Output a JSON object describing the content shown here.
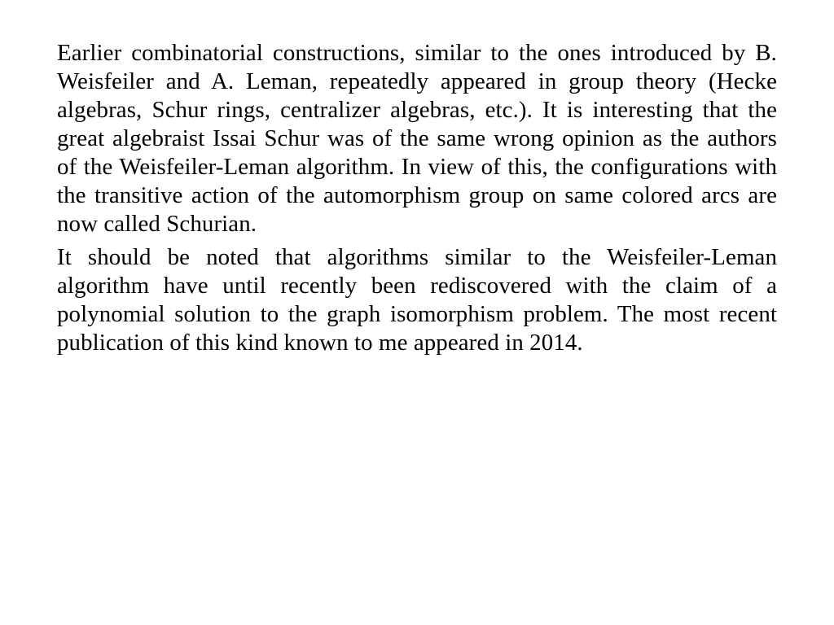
{
  "document": {
    "background_color": "#ffffff",
    "text_color": "#000000",
    "font_family": "Times New Roman",
    "font_size_pt": 22,
    "line_height": 1.21,
    "text_align": "justify",
    "paragraphs": [
      "Earlier combinatorial constructions, similar to the ones introduced by B. Weisfeiler and A. Leman, repeatedly appeared in group theory (Hecke algebras, Schur rings, centralizer algebras, etc.).  It is interesting that the great algebraist Issai Schur was of the same wrong opinion as the authors of the Weisfeiler-Leman algorithm. In view of this, the configurations with the transitive action of the automorphism group on same colored arcs are now called Schurian.",
      "It should be noted that algorithms similar to the Weisfeiler-Leman algorithm have until recently been rediscovered with the claim of a polynomial solution to the graph isomorphism problem. The most recent publication of this kind known to me appeared in 2014."
    ]
  }
}
